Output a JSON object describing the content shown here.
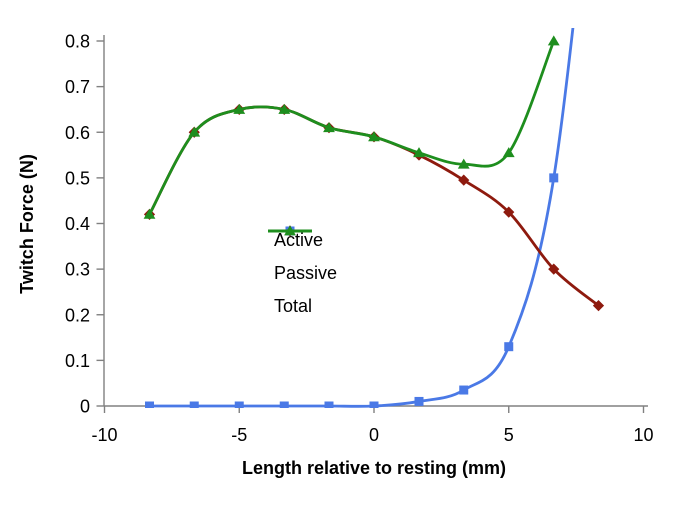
{
  "chart_data": {
    "type": "line",
    "title": "",
    "xlabel": "Length relative to resting (mm)",
    "ylabel": "Twitch Force (N)",
    "xlim": [
      -10,
      10
    ],
    "ylim": [
      0,
      0.8
    ],
    "x_ticks": [
      -10,
      -5,
      0,
      5,
      10
    ],
    "x_tick_labels": [
      "-10",
      "-5",
      "0",
      "5",
      "10"
    ],
    "y_ticks": [
      0,
      0.1,
      0.2,
      0.3,
      0.4,
      0.5,
      0.6,
      0.7,
      0.8
    ],
    "y_tick_labels": [
      "0",
      "0.1",
      "0.2",
      "0.3",
      "0.4",
      "0.5",
      "0.6",
      "0.7",
      "0.8"
    ],
    "grid": false,
    "smooth": true,
    "legend_position": "inside-center-left",
    "axis_color": "#808080",
    "text_color": "#000000",
    "background": "#ffffff",
    "x": [
      -8.33,
      -6.67,
      -5,
      -3.33,
      -1.67,
      0,
      1.67,
      3.33,
      5,
      6.67,
      8.33
    ],
    "series": [
      {
        "name": "Active",
        "color": "#8e1a0e",
        "marker": "diamond",
        "values": [
          0.42,
          0.6,
          0.65,
          0.65,
          0.61,
          0.59,
          0.55,
          0.495,
          0.425,
          0.3,
          0.22
        ]
      },
      {
        "name": "Passive",
        "color": "#4a79e6",
        "marker": "square",
        "values": [
          0,
          0,
          0,
          0,
          0,
          0,
          0.01,
          0.035,
          0.13,
          0.5
        ],
        "offscale_next_x": 8.33,
        "offscale_next_value": 1.35,
        "clipped_note": "curve exits top of plot near x = 7.6"
      },
      {
        "name": "Total",
        "color": "#1e8e1e",
        "marker": "triangle",
        "values": [
          0.42,
          0.6,
          0.65,
          0.65,
          0.61,
          0.59,
          0.555,
          0.53,
          0.555,
          0.8
        ]
      }
    ],
    "z_order": [
      1,
      0,
      2
    ]
  }
}
